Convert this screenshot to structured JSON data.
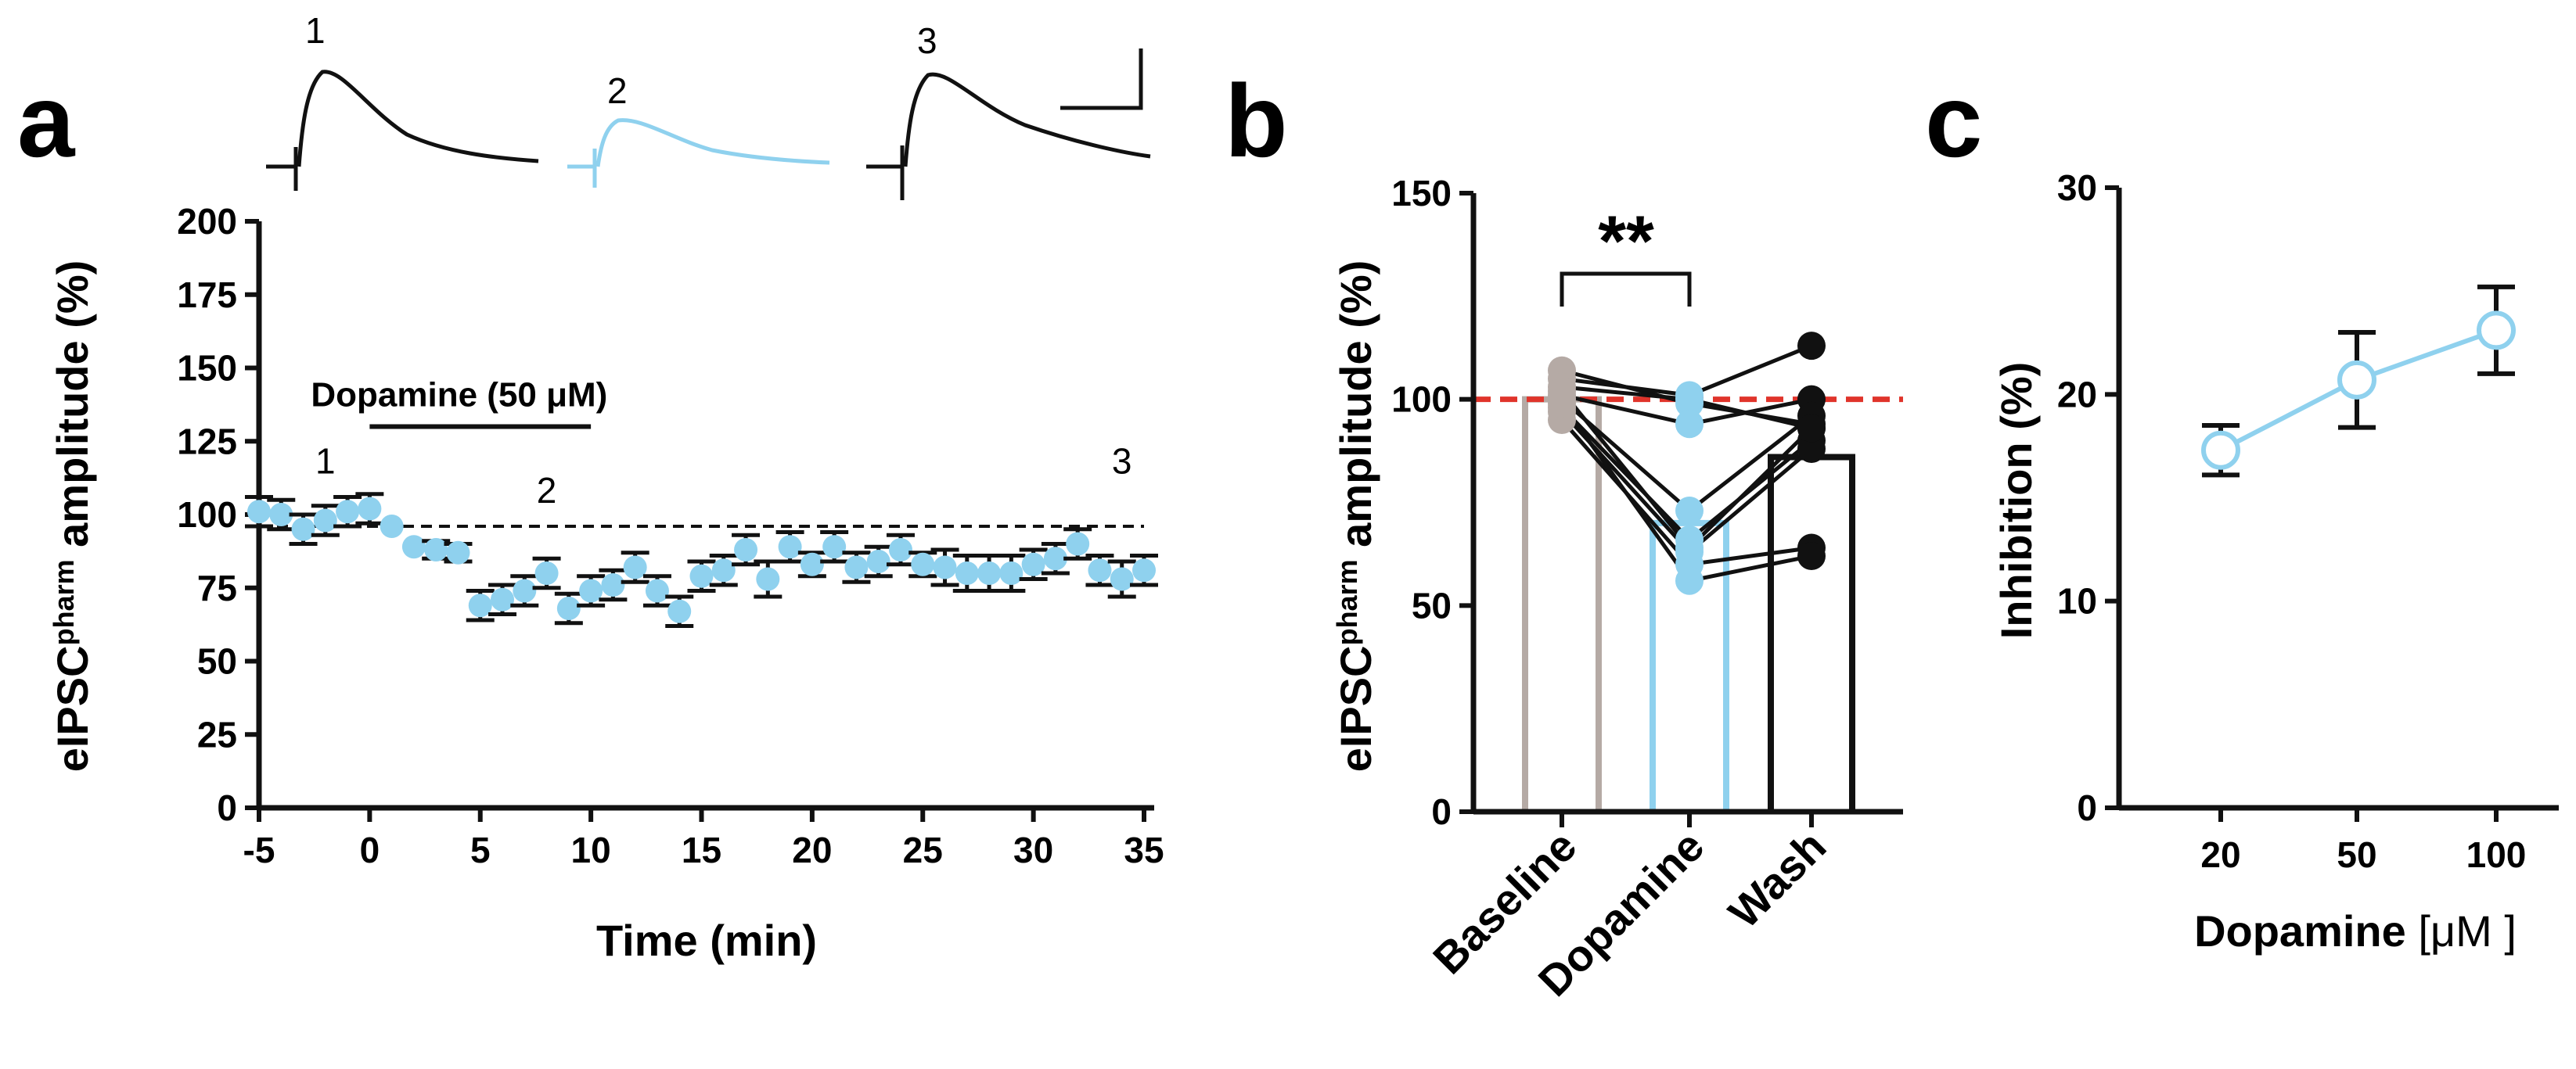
{
  "colors": {
    "blue": "#8fd1ee",
    "black": "#111111",
    "grey": "#b5aaa5",
    "red_dash": "#e0342b"
  },
  "panel_a": {
    "letter": "a",
    "drug_label": "Dopamine (50 μM)",
    "trace_labels": [
      "1",
      "2",
      "3"
    ],
    "timepoint_markers": [
      {
        "label": "1",
        "x": -2
      },
      {
        "label": "2",
        "x": 8
      },
      {
        "label": "3",
        "x": 34
      }
    ]
  },
  "panel_b": {
    "letter": "b",
    "significance": "**"
  },
  "panel_c": {
    "letter": "c"
  },
  "chart_data": [
    {
      "type": "scatter",
      "panel": "a",
      "xlabel": "Time  (min)",
      "ylabel_main": "eIPSC",
      "ylabel_sup": "pharm",
      "ylabel_rest": " amplitude (%)",
      "xlim": [
        -5,
        35
      ],
      "ylim": [
        0,
        200
      ],
      "xticks": [
        "-5",
        "0",
        "5",
        "10",
        "15",
        "20",
        "25",
        "30",
        "35"
      ],
      "yticks": [
        "0",
        "25",
        "50",
        "75",
        "100",
        "125",
        "150",
        "175",
        "200"
      ],
      "baseline": 96,
      "drug_bar": [
        0,
        10
      ],
      "x": [
        -5,
        -4,
        -3,
        -2,
        -1,
        0,
        1,
        2,
        3,
        4,
        5,
        6,
        7,
        8,
        9,
        10,
        11,
        12,
        13,
        14,
        15,
        16,
        17,
        18,
        19,
        20,
        21,
        22,
        23,
        24,
        25,
        26,
        27,
        28,
        29,
        30,
        31,
        32,
        33,
        34,
        35
      ],
      "y": [
        101,
        100,
        95,
        98,
        101,
        102,
        96,
        89,
        88,
        87,
        69,
        71,
        74,
        80,
        68,
        74,
        76,
        82,
        74,
        67,
        79,
        81,
        88,
        78,
        89,
        83,
        89,
        82,
        84,
        88,
        83,
        82,
        80,
        80,
        80,
        83,
        85,
        90,
        81,
        78,
        81
      ],
      "err": [
        5,
        5,
        5,
        5,
        5,
        5,
        0,
        0,
        3,
        3,
        5,
        5,
        5,
        5,
        5,
        5,
        5,
        5,
        5,
        5,
        5,
        5,
        5,
        6,
        5,
        4,
        5,
        5,
        5,
        5,
        4,
        6,
        6,
        6,
        6,
        5,
        5,
        5,
        5,
        6,
        5
      ]
    },
    {
      "type": "bar",
      "panel": "b",
      "ylabel_main": "eIPSC",
      "ylabel_sup": "pharm",
      "ylabel_rest": " amplitude (%)",
      "ylim": [
        0,
        150
      ],
      "yticks": [
        "0",
        "50",
        "100",
        "150"
      ],
      "categories": [
        "Baseline",
        "Dopamine",
        "Wash"
      ],
      "means": [
        100,
        70,
        86
      ],
      "reference_line": 100,
      "paired_points": [
        [
          107,
          99,
          94
        ],
        [
          105,
          101,
          113
        ],
        [
          103,
          100,
          93
        ],
        [
          101,
          94,
          100
        ],
        [
          100,
          73,
          96
        ],
        [
          98,
          66,
          90
        ],
        [
          97,
          63,
          88
        ],
        [
          95,
          60,
          64
        ],
        [
          99,
          56,
          62
        ],
        [
          102,
          64,
          93
        ]
      ]
    },
    {
      "type": "line",
      "panel": "c",
      "xlabel_main": "Dopamine ",
      "xlabel_units": "[μM ]",
      "ylabel": "Inhibition (%)",
      "ylim": [
        0,
        30
      ],
      "yticks": [
        "0",
        "10",
        "20",
        "30"
      ],
      "categories": [
        "20",
        "50",
        "100"
      ],
      "values": [
        17.3,
        20.7,
        23.1
      ],
      "err": [
        1.2,
        2.3,
        2.1
      ]
    }
  ]
}
